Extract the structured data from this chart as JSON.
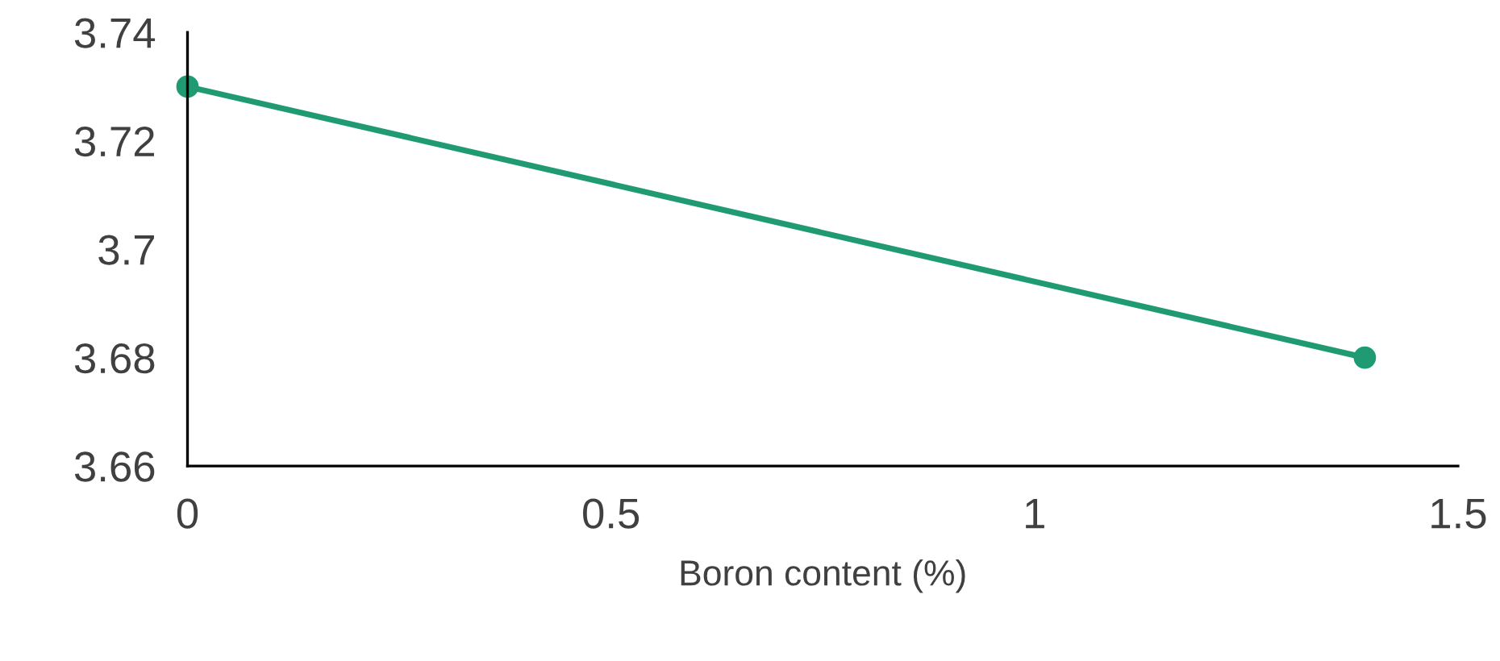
{
  "chart_data": {
    "type": "line",
    "xlabel": "Boron content (%)",
    "series": [
      {
        "color": "#1f9a72",
        "x": [
          0,
          1.39
        ],
        "values": [
          3.73,
          3.68
        ]
      }
    ],
    "xlim": [
      0,
      1.5
    ],
    "xticks": [
      0,
      0.5,
      1,
      1.5
    ],
    "ylim": [
      3.66,
      3.74
    ],
    "yticks": [
      3.66,
      3.68,
      3.7,
      3.72,
      3.74
    ],
    "marker": "circle",
    "line_style": "solid",
    "grid": false,
    "legend": false
  }
}
